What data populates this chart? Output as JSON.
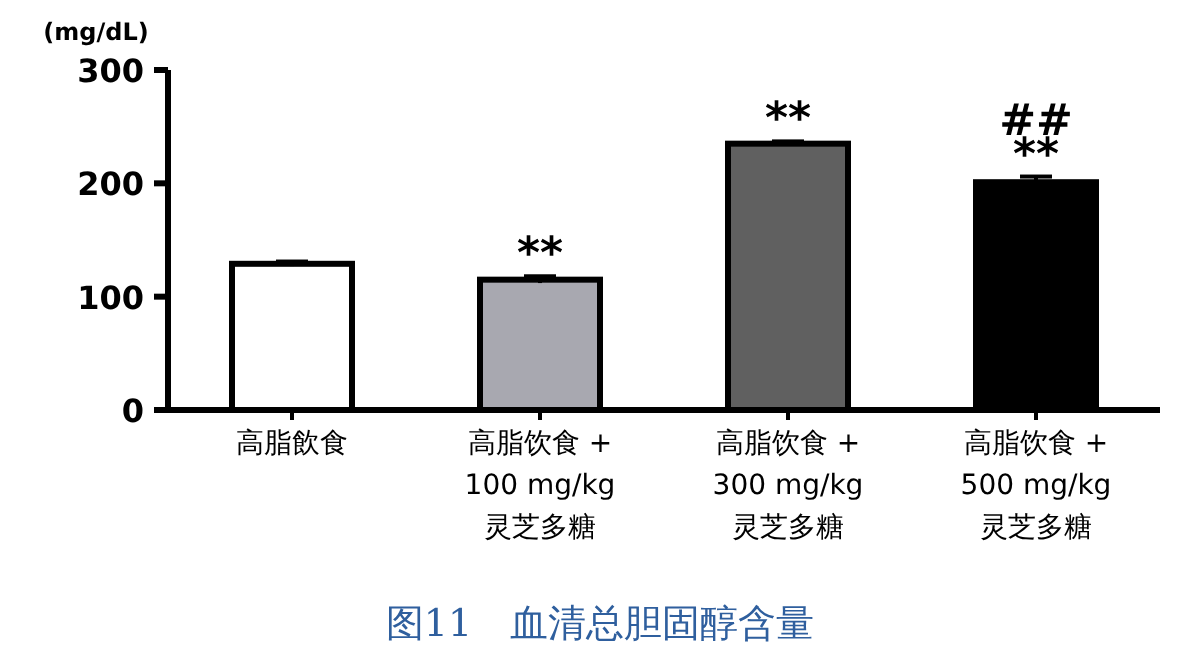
{
  "chart_data": {
    "type": "bar",
    "title": "图11　血清总胆固醇含量",
    "ylabel": "(mg/dL)",
    "categories": [
      "高脂飲食",
      "高脂饮食 +\n100 mg/kg\n灵芝多糖",
      "高脂饮食 +\n300 mg/kg\n灵芝多糖",
      "高脂饮食 +\n500 mg/kg\n灵芝多糖"
    ],
    "values": [
      129,
      115,
      235,
      201
    ],
    "errors": [
      2,
      3,
      2,
      5
    ],
    "colors": [
      "#ffffff",
      "#a8a8b0",
      "#606060",
      "#000000"
    ],
    "ylim": [
      0,
      300
    ],
    "yticks": [
      0,
      100,
      200,
      300
    ],
    "annotations": [
      {
        "text": "**",
        "x": "高脂饮食 +\n100 mg/kg\n灵芝多糖",
        "y": 118
      },
      {
        "text": "**",
        "x": "高脂饮食 +\n300 mg/kg\n灵芝多糖",
        "y": 237
      },
      {
        "text": "**",
        "x": "高脂饮食 +\n500 mg/kg\n灵芝多糖",
        "y": 206
      },
      {
        "text": "##",
        "x": "高脂饮食 +\n500 mg/kg\n灵芝多糖",
        "y": 206
      }
    ]
  }
}
